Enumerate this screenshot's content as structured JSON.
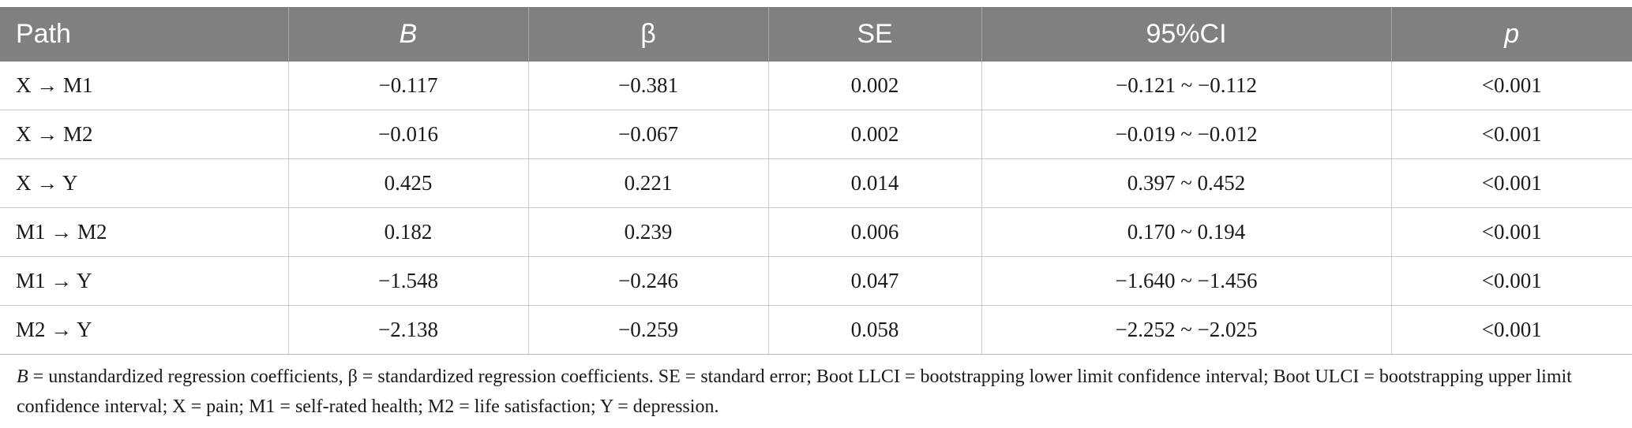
{
  "table": {
    "headers": {
      "path": "Path",
      "b": "B",
      "beta": "β",
      "se": "SE",
      "ci": "95%CI",
      "p": "p"
    },
    "rows": [
      {
        "path": "X → M1",
        "b": "−0.117",
        "beta": "−0.381",
        "se": "0.002",
        "ci": "−0.121 ~ −0.112",
        "p": "<0.001"
      },
      {
        "path": "X → M2",
        "b": "−0.016",
        "beta": "−0.067",
        "se": "0.002",
        "ci": "−0.019 ~ −0.012",
        "p": "<0.001"
      },
      {
        "path": "X → Y",
        "b": "0.425",
        "beta": "0.221",
        "se": "0.014",
        "ci": "0.397 ~ 0.452",
        "p": "<0.001"
      },
      {
        "path": "M1 → M2",
        "b": "0.182",
        "beta": "0.239",
        "se": "0.006",
        "ci": "0.170 ~ 0.194",
        "p": "<0.001"
      },
      {
        "path": "M1 → Y",
        "b": "−1.548",
        "beta": "−0.246",
        "se": "0.047",
        "ci": "−1.640 ~ −1.456",
        "p": "<0.001"
      },
      {
        "path": "M2 → Y",
        "b": "−2.138",
        "beta": "−0.259",
        "se": "0.058",
        "ci": "−2.252 ~ −2.025",
        "p": "<0.001"
      }
    ]
  },
  "footnote": {
    "b_symbol": "B",
    "text_after_b": " = unstandardized regression coefficients, β = standardized regression coefficients. SE = standard error; Boot LLCI = bootstrapping lower limit confidence interval; Boot ULCI = bootstrapping upper limit confidence interval; X = pain; M1 = self-rated health; M2 = life satisfaction; Y = depression."
  },
  "colors": {
    "header_bg": "#808080",
    "header_text": "#ffffff",
    "grid_line": "#c9c9c9"
  }
}
